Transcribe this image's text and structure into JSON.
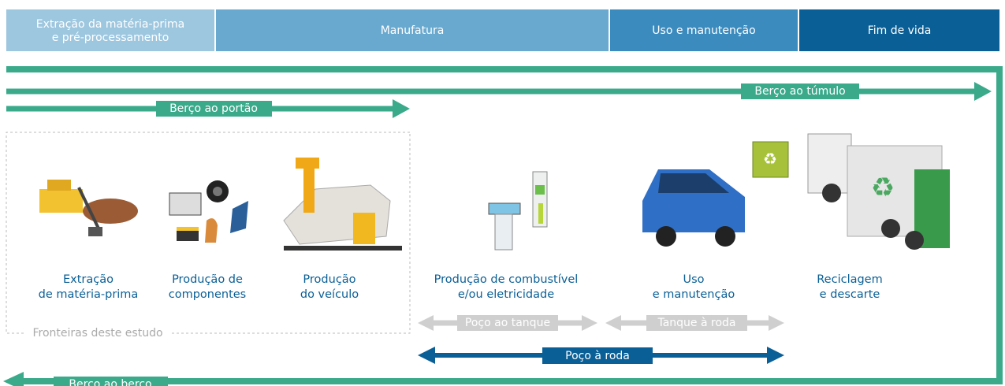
{
  "header": {
    "stages": [
      {
        "lines": [
          "Extração da matéria-prima",
          "e pré-processamento"
        ]
      },
      {
        "lines": [
          "Manufatura"
        ]
      },
      {
        "lines": [
          "Uso e manutenção"
        ]
      },
      {
        "lines": [
          "Fim de vida"
        ]
      }
    ]
  },
  "arrows": {
    "cradle_to_grave": "Berço ao túmulo",
    "cradle_to_gate": "Berço ao portão",
    "cradle_to_cradle": "Berço ao berço",
    "well_to_tank": "Poço ao tanque",
    "tank_to_wheel": "Tanque à roda",
    "well_to_wheel": "Poço à roda"
  },
  "boundary": "Fronteiras deste estudo",
  "steps": [
    {
      "lines": [
        "Extração",
        "de matéria-prima"
      ]
    },
    {
      "lines": [
        "Produção de",
        "componentes"
      ]
    },
    {
      "lines": [
        "Produção",
        "do veículo"
      ]
    },
    {
      "lines": [
        "Produção de combustível",
        "e/ou eletricidade"
      ]
    },
    {
      "lines": [
        "Uso",
        "e manutenção"
      ]
    },
    {
      "lines": [
        "Reciclagem",
        "e descarte"
      ]
    }
  ]
}
